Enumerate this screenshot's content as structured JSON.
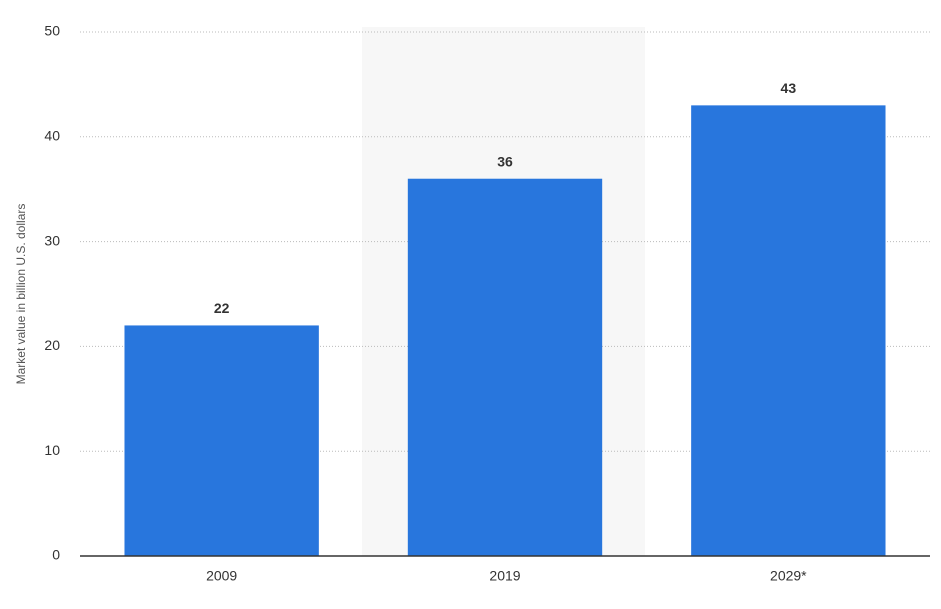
{
  "chart_data": {
    "type": "bar",
    "y_label": "Market value in billion U.S. dollars",
    "categories": [
      "2009",
      "2019",
      "2029*"
    ],
    "values": [
      22,
      36,
      43
    ],
    "color": "#2876dd",
    "ylim": [
      0,
      50
    ],
    "yticks": [
      0,
      10,
      20,
      30,
      40,
      50
    ],
    "grid": true
  }
}
